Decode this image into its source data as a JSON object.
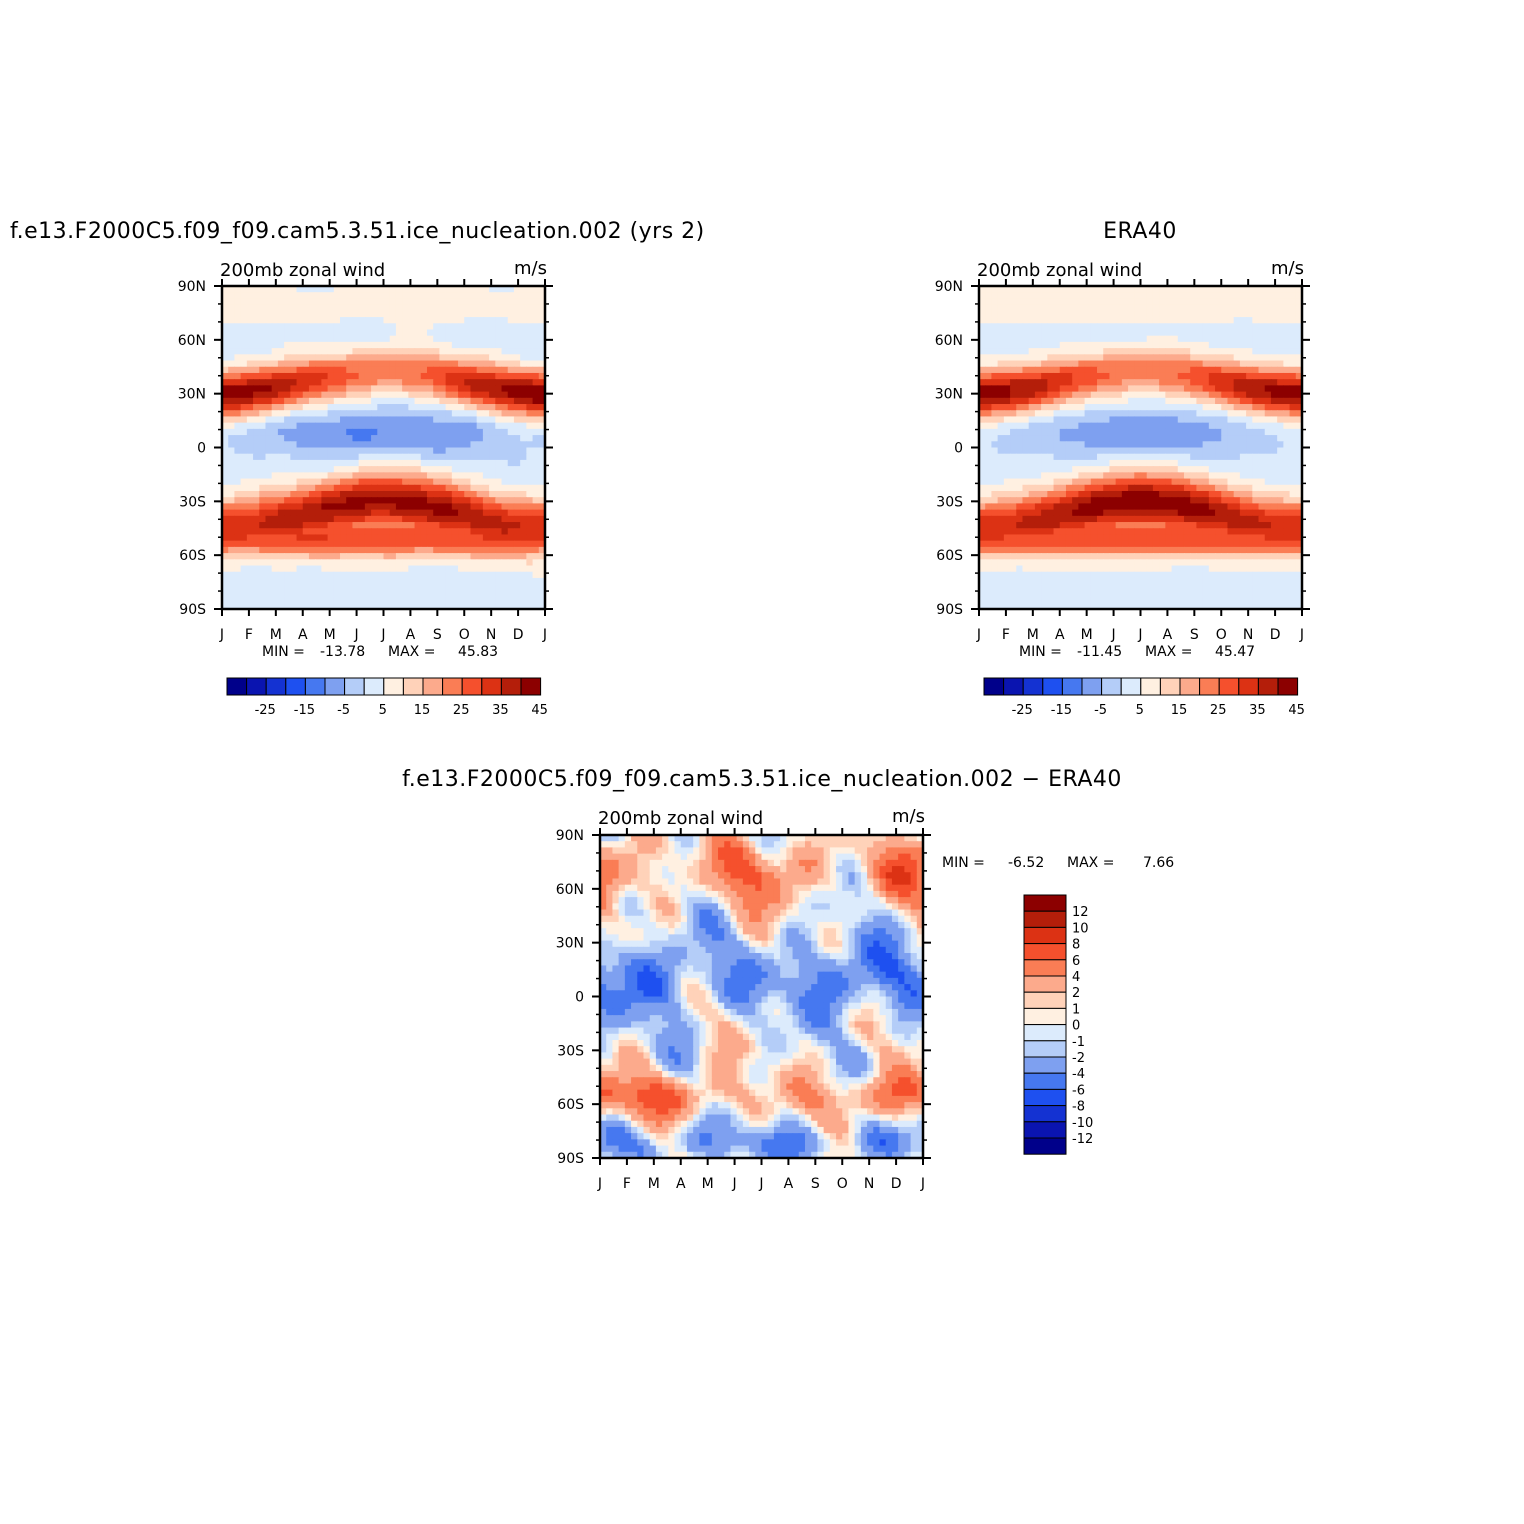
{
  "chart_data": [
    {
      "type": "heatmap",
      "id": "model",
      "title": "f.e13.F2000C5.f09_f09.cam5.3.51.ice_nucleation.002 (yrs 2)",
      "subtitle_left": "200mb zonal wind",
      "subtitle_right": "m/s",
      "x_ticks": [
        "J",
        "F",
        "M",
        "A",
        "M",
        "J",
        "J",
        "A",
        "S",
        "O",
        "N",
        "D",
        "J"
      ],
      "y_ticks": [
        "90N",
        "60N",
        "30N",
        "0",
        "30S",
        "60S",
        "90S"
      ],
      "ylim": [
        -90,
        90
      ],
      "min_label": "MIN =",
      "min_value": "-13.78",
      "max_label": "MAX =",
      "max_value": "45.83",
      "colorbar_levels": [
        -30,
        -25,
        -20,
        -15,
        -10,
        -5,
        0,
        5,
        10,
        15,
        20,
        25,
        30,
        35,
        40,
        45
      ],
      "colorbar_tick_labels": [
        "-25",
        "-15",
        "-5",
        "5",
        "15",
        "25",
        "35",
        "45"
      ],
      "field": {
        "jet_nh_winter": 42,
        "jet_nh_summer": 22,
        "jet_sh_winter": 40,
        "jet_sh_summer": 33,
        "trop_easterly_summer": -13,
        "trop_easterly_winter": -4,
        "noise": 0.6
      }
    },
    {
      "type": "heatmap",
      "id": "obs",
      "title": "ERA40",
      "subtitle_left": "200mb zonal wind",
      "subtitle_right": "m/s",
      "x_ticks": [
        "J",
        "F",
        "M",
        "A",
        "M",
        "J",
        "J",
        "A",
        "S",
        "O",
        "N",
        "D",
        "J"
      ],
      "y_ticks": [
        "90N",
        "60N",
        "30N",
        "0",
        "30S",
        "60S",
        "90S"
      ],
      "ylim": [
        -90,
        90
      ],
      "min_label": "MIN =",
      "min_value": "-11.45",
      "max_label": "MAX =",
      "max_value": "45.47",
      "colorbar_levels": [
        -30,
        -25,
        -20,
        -15,
        -10,
        -5,
        0,
        5,
        10,
        15,
        20,
        25,
        30,
        35,
        40,
        45
      ],
      "colorbar_tick_labels": [
        "-25",
        "-15",
        "-5",
        "5",
        "15",
        "25",
        "35",
        "45"
      ],
      "field": {
        "jet_nh_winter": 41,
        "jet_nh_summer": 21,
        "jet_sh_winter": 42,
        "jet_sh_summer": 32,
        "trop_easterly_summer": -11,
        "trop_easterly_winter": -3,
        "noise": 0.2
      }
    },
    {
      "type": "heatmap",
      "id": "diff",
      "title": "f.e13.F2000C5.f09_f09.cam5.3.51.ice_nucleation.002 − ERA40",
      "subtitle_left": "200mb zonal wind",
      "subtitle_right": "m/s",
      "x_ticks": [
        "J",
        "F",
        "M",
        "A",
        "M",
        "J",
        "J",
        "A",
        "S",
        "O",
        "N",
        "D",
        "J"
      ],
      "y_ticks": [
        "90N",
        "60N",
        "30N",
        "0",
        "30S",
        "60S",
        "90S"
      ],
      "ylim": [
        -90,
        90
      ],
      "min_label": "MIN =",
      "min_value": "-6.52",
      "max_label": "MAX =",
      "max_value": "7.66",
      "colorbar_levels": [
        -12,
        -10,
        -8,
        -6,
        -4,
        -2,
        -1,
        0,
        1,
        2,
        4,
        6,
        8,
        10,
        12
      ],
      "colorbar_tick_labels": [
        "12",
        "10",
        "8",
        "6",
        "4",
        "2",
        "1",
        "0",
        "-1",
        "-2",
        "-4",
        "-6",
        "-8",
        "-10",
        "-12"
      ]
    }
  ],
  "palettes": {
    "full": [
      "#00008a",
      "#0a14b0",
      "#1432d2",
      "#1e50f0",
      "#4678f0",
      "#7ea0f0",
      "#b4cdf8",
      "#dcebfc",
      "#fff0e1",
      "#ffd2b9",
      "#fcaa8c",
      "#fa7d55",
      "#f5502d",
      "#dc3214",
      "#b41e0a",
      "#8c0000"
    ],
    "diff": [
      "#8c0000",
      "#b41e0a",
      "#dc3214",
      "#f5502d",
      "#fa7d55",
      "#fcaa8c",
      "#ffd2b9",
      "#fff0e1",
      "#dcebfc",
      "#b4cdf8",
      "#7ea0f0",
      "#4678f0",
      "#1e50f0",
      "#1432d2",
      "#0a14b0",
      "#00008a"
    ]
  }
}
